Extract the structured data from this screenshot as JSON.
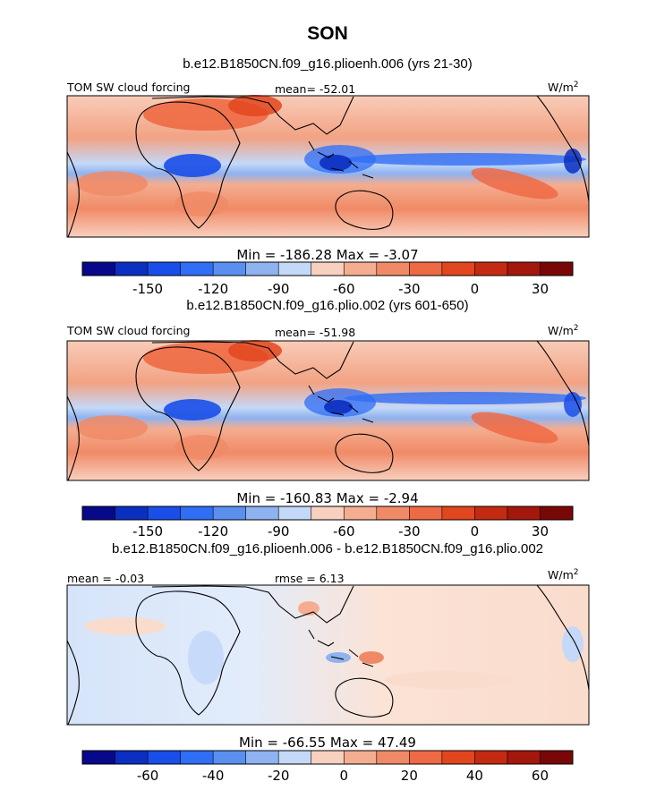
{
  "figure": {
    "title": "SON"
  },
  "colors": {
    "palette_blue_to_red": [
      "#08088a",
      "#0b2fc0",
      "#1a4ee8",
      "#2f6ef5",
      "#5a8ff0",
      "#8fb2f0",
      "#c4d8f8",
      "#f8d0bf",
      "#f4ad90",
      "#f08a66",
      "#ee6a44",
      "#e2461e",
      "#c42a12",
      "#a3170d",
      "#7a0707"
    ],
    "coastline": "#000000"
  },
  "chart_data": [
    {
      "type": "heatmap",
      "subtitle": "b.e12.B1850CN.f09_g16.plioenh.006 (yrs 21-30)",
      "left_label": "TOM SW cloud forcing",
      "center_label": "mean= -52.01",
      "units_label": "W/m",
      "units_sup": "2",
      "minmax_label": "Min = -186.28 Max = -3.07",
      "colorbar": {
        "ticks": [
          "-150",
          "-120",
          "-90",
          "-60",
          "-30",
          "0",
          "30"
        ],
        "levels": 15
      }
    },
    {
      "type": "heatmap",
      "subtitle": "b.e12.B1850CN.f09_g16.plio.002 (yrs 601-650)",
      "left_label": "TOM SW cloud forcing",
      "center_label": "mean= -51.98",
      "units_label": "W/m",
      "units_sup": "2",
      "minmax_label": "Min = -160.83 Max = -2.94",
      "colorbar": {
        "ticks": [
          "-150",
          "-120",
          "-90",
          "-60",
          "-30",
          "0",
          "30"
        ],
        "levels": 15
      }
    },
    {
      "type": "heatmap",
      "subtitle": "b.e12.B1850CN.f09_g16.plioenh.006 - b.e12.B1850CN.f09_g16.plio.002",
      "left_label": "mean = -0.03",
      "center_label": "rmse = 6.13",
      "units_label": "W/m",
      "units_sup": "2",
      "minmax_label": "Min = -66.55 Max = 47.49",
      "colorbar": {
        "ticks": [
          "-60",
          "-40",
          "-20",
          "0",
          "20",
          "40",
          "60"
        ],
        "levels": 15
      }
    }
  ]
}
